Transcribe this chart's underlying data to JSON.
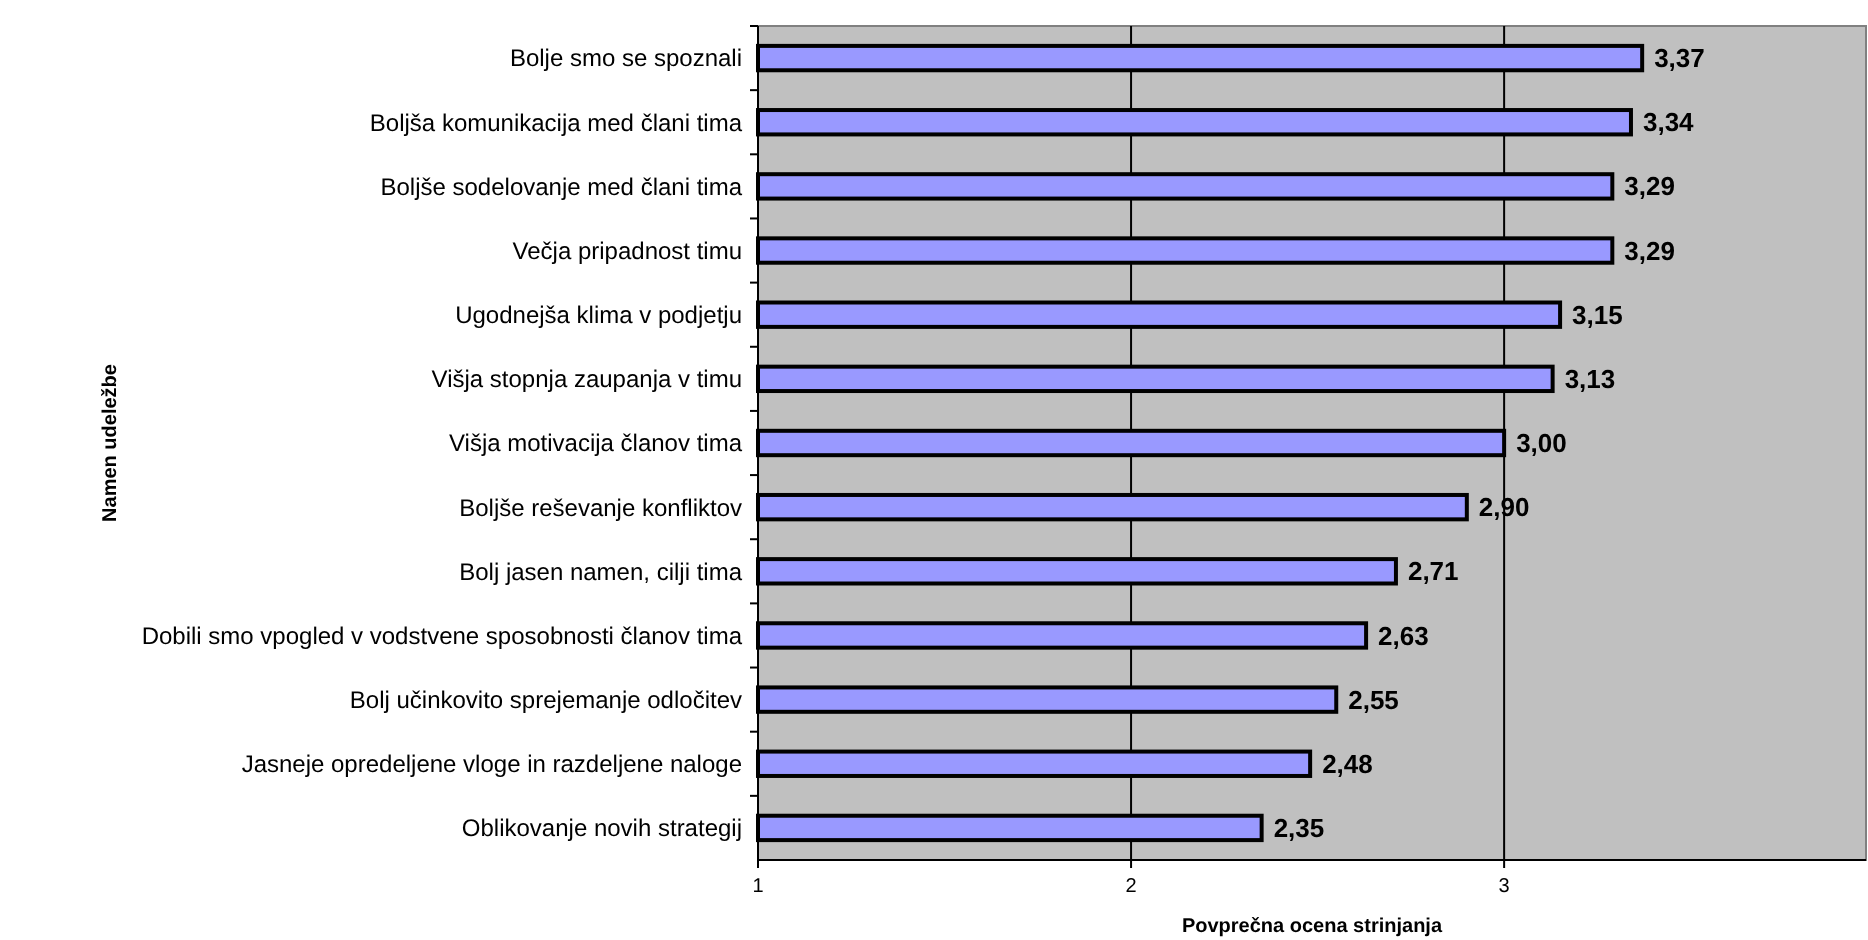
{
  "chart_data": {
    "type": "bar",
    "orientation": "horizontal",
    "xlabel": "Povprečna ocena strinjanja",
    "ylabel": "Namen udeležbe",
    "categories": [
      "Bolje smo se spoznali",
      "Boljša komunikacija med člani tima",
      "Boljše sodelovanje med člani tima",
      "Večja pripadnost timu",
      "Ugodnejša klima v podjetju",
      "Višja stopnja zaupanja v timu",
      "Višja motivacija članov tima",
      "Boljše reševanje konfliktov",
      "Bolj jasen namen, cilji tima",
      "Dobili smo vpogled v vodstvene sposobnosti članov tima",
      "Bolj učinkovito sprejemanje odločitev",
      "Jasneje opredeljene vloge in razdeljene naloge",
      "Oblikovanje novih strategij"
    ],
    "values": [
      3.37,
      3.34,
      3.29,
      3.29,
      3.15,
      3.13,
      3.0,
      2.9,
      2.71,
      2.63,
      2.55,
      2.48,
      2.35
    ],
    "value_labels": [
      "3,37",
      "3,34",
      "3,29",
      "3,29",
      "3,15",
      "3,13",
      "3,00",
      "2,90",
      "2,71",
      "2,63",
      "2,55",
      "2,48",
      "2,35"
    ],
    "color": "#9999ff",
    "xlim": [
      1,
      3.97
    ],
    "xticks": [
      1,
      2,
      3
    ],
    "grid": "x"
  }
}
